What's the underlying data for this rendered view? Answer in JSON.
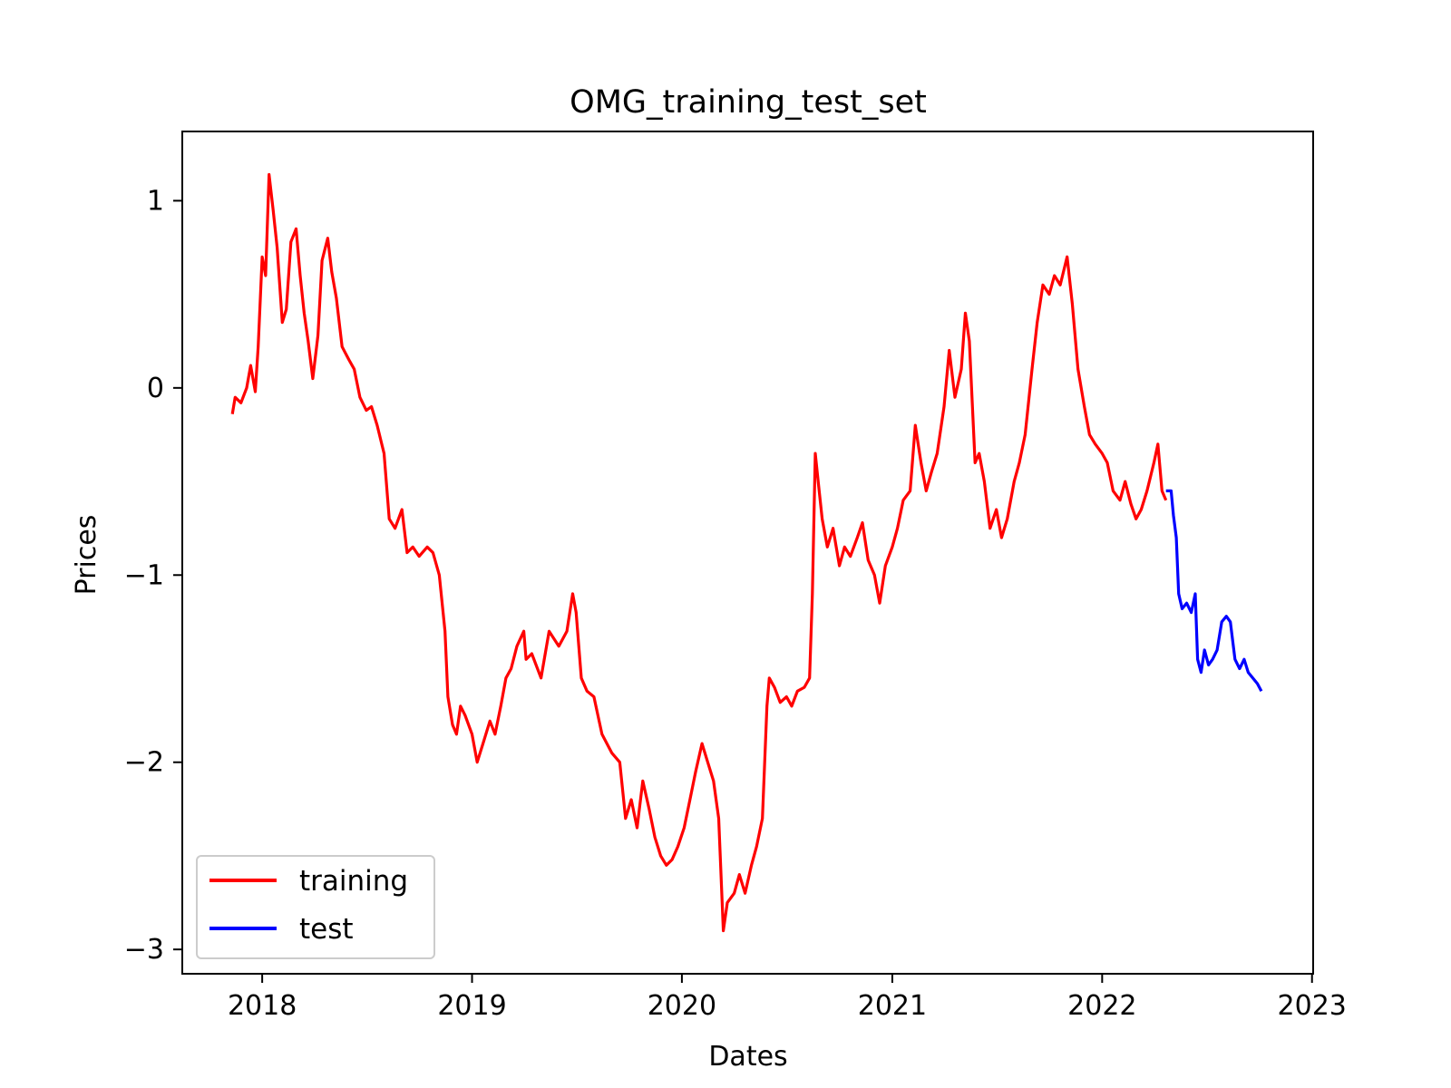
{
  "chart_data": {
    "type": "line",
    "title": "OMG_training_test_set",
    "xlabel": "Dates",
    "ylabel": "Prices",
    "xlim": [
      "2017-08-15",
      "2023-01-03"
    ],
    "ylim": [
      -3.13,
      1.37
    ],
    "x_ticks": [
      "2018",
      "2019",
      "2020",
      "2021",
      "2022",
      "2023"
    ],
    "y_ticks": [
      1,
      0,
      -1,
      -2,
      -3
    ],
    "y_tick_labels": [
      "1",
      "0",
      "−1",
      "−2",
      "−3"
    ],
    "grid": false,
    "legend_position": "lower-left",
    "series": [
      {
        "name": "training",
        "color": "#ff0000",
        "points": [
          [
            "2017-11-10",
            -0.14
          ],
          [
            "2017-11-15",
            -0.05
          ],
          [
            "2017-11-25",
            -0.08
          ],
          [
            "2017-12-05",
            0.0
          ],
          [
            "2017-12-12",
            0.12
          ],
          [
            "2017-12-20",
            -0.02
          ],
          [
            "2017-12-25",
            0.22
          ],
          [
            "2018-01-01",
            0.7
          ],
          [
            "2018-01-07",
            0.6
          ],
          [
            "2018-01-13",
            1.14
          ],
          [
            "2018-01-20",
            0.95
          ],
          [
            "2018-01-27",
            0.75
          ],
          [
            "2018-02-05",
            0.35
          ],
          [
            "2018-02-12",
            0.42
          ],
          [
            "2018-02-20",
            0.78
          ],
          [
            "2018-03-01",
            0.85
          ],
          [
            "2018-03-08",
            0.6
          ],
          [
            "2018-03-15",
            0.4
          ],
          [
            "2018-03-22",
            0.25
          ],
          [
            "2018-03-30",
            0.05
          ],
          [
            "2018-04-08",
            0.28
          ],
          [
            "2018-04-15",
            0.68
          ],
          [
            "2018-04-25",
            0.8
          ],
          [
            "2018-05-02",
            0.62
          ],
          [
            "2018-05-10",
            0.48
          ],
          [
            "2018-05-20",
            0.22
          ],
          [
            "2018-06-01",
            0.15
          ],
          [
            "2018-06-10",
            0.1
          ],
          [
            "2018-06-20",
            -0.05
          ],
          [
            "2018-07-01",
            -0.12
          ],
          [
            "2018-07-10",
            -0.1
          ],
          [
            "2018-07-20",
            -0.2
          ],
          [
            "2018-08-01",
            -0.35
          ],
          [
            "2018-08-10",
            -0.7
          ],
          [
            "2018-08-20",
            -0.75
          ],
          [
            "2018-09-01",
            -0.65
          ],
          [
            "2018-09-10",
            -0.88
          ],
          [
            "2018-09-20",
            -0.85
          ],
          [
            "2018-10-01",
            -0.9
          ],
          [
            "2018-10-15",
            -0.85
          ],
          [
            "2018-10-25",
            -0.88
          ],
          [
            "2018-11-05",
            -1.0
          ],
          [
            "2018-11-15",
            -1.3
          ],
          [
            "2018-11-20",
            -1.65
          ],
          [
            "2018-11-28",
            -1.8
          ],
          [
            "2018-12-05",
            -1.85
          ],
          [
            "2018-12-12",
            -1.7
          ],
          [
            "2018-12-20",
            -1.75
          ],
          [
            "2019-01-01",
            -1.85
          ],
          [
            "2019-01-10",
            -2.0
          ],
          [
            "2019-01-20",
            -1.9
          ],
          [
            "2019-02-01",
            -1.78
          ],
          [
            "2019-02-10",
            -1.85
          ],
          [
            "2019-02-20",
            -1.7
          ],
          [
            "2019-03-01",
            -1.55
          ],
          [
            "2019-03-10",
            -1.5
          ],
          [
            "2019-03-20",
            -1.38
          ],
          [
            "2019-04-01",
            -1.3
          ],
          [
            "2019-04-05",
            -1.45
          ],
          [
            "2019-04-15",
            -1.42
          ],
          [
            "2019-05-01",
            -1.55
          ],
          [
            "2019-05-15",
            -1.3
          ],
          [
            "2019-06-01",
            -1.38
          ],
          [
            "2019-06-15",
            -1.3
          ],
          [
            "2019-06-25",
            -1.1
          ],
          [
            "2019-07-01",
            -1.2
          ],
          [
            "2019-07-10",
            -1.55
          ],
          [
            "2019-07-20",
            -1.62
          ],
          [
            "2019-08-01",
            -1.65
          ],
          [
            "2019-08-15",
            -1.85
          ],
          [
            "2019-09-01",
            -1.95
          ],
          [
            "2019-09-15",
            -2.0
          ],
          [
            "2019-09-25",
            -2.3
          ],
          [
            "2019-10-05",
            -2.2
          ],
          [
            "2019-10-15",
            -2.35
          ],
          [
            "2019-10-25",
            -2.1
          ],
          [
            "2019-11-05",
            -2.25
          ],
          [
            "2019-11-15",
            -2.4
          ],
          [
            "2019-11-25",
            -2.5
          ],
          [
            "2019-12-05",
            -2.55
          ],
          [
            "2019-12-15",
            -2.52
          ],
          [
            "2019-12-25",
            -2.45
          ],
          [
            "2020-01-05",
            -2.35
          ],
          [
            "2020-01-15",
            -2.2
          ],
          [
            "2020-01-25",
            -2.05
          ],
          [
            "2020-02-05",
            -1.9
          ],
          [
            "2020-02-15",
            -2.0
          ],
          [
            "2020-02-25",
            -2.1
          ],
          [
            "2020-03-05",
            -2.3
          ],
          [
            "2020-03-13",
            -2.9
          ],
          [
            "2020-03-20",
            -2.75
          ],
          [
            "2020-04-01",
            -2.7
          ],
          [
            "2020-04-10",
            -2.6
          ],
          [
            "2020-04-20",
            -2.7
          ],
          [
            "2020-05-01",
            -2.55
          ],
          [
            "2020-05-10",
            -2.45
          ],
          [
            "2020-05-20",
            -2.3
          ],
          [
            "2020-05-28",
            -1.7
          ],
          [
            "2020-06-01",
            -1.55
          ],
          [
            "2020-06-10",
            -1.6
          ],
          [
            "2020-06-20",
            -1.68
          ],
          [
            "2020-07-01",
            -1.65
          ],
          [
            "2020-07-10",
            -1.7
          ],
          [
            "2020-07-20",
            -1.62
          ],
          [
            "2020-08-01",
            -1.6
          ],
          [
            "2020-08-10",
            -1.55
          ],
          [
            "2020-08-15",
            -1.1
          ],
          [
            "2020-08-20",
            -0.35
          ],
          [
            "2020-08-25",
            -0.5
          ],
          [
            "2020-09-01",
            -0.7
          ],
          [
            "2020-09-10",
            -0.85
          ],
          [
            "2020-09-20",
            -0.75
          ],
          [
            "2020-10-01",
            -0.95
          ],
          [
            "2020-10-10",
            -0.85
          ],
          [
            "2020-10-20",
            -0.9
          ],
          [
            "2020-11-01",
            -0.8
          ],
          [
            "2020-11-10",
            -0.72
          ],
          [
            "2020-11-20",
            -0.92
          ],
          [
            "2020-12-01",
            -1.0
          ],
          [
            "2020-12-10",
            -1.15
          ],
          [
            "2020-12-20",
            -0.95
          ],
          [
            "2021-01-01",
            -0.85
          ],
          [
            "2021-01-10",
            -0.75
          ],
          [
            "2021-01-20",
            -0.6
          ],
          [
            "2021-02-01",
            -0.55
          ],
          [
            "2021-02-10",
            -0.2
          ],
          [
            "2021-02-20",
            -0.4
          ],
          [
            "2021-03-01",
            -0.55
          ],
          [
            "2021-03-10",
            -0.45
          ],
          [
            "2021-03-20",
            -0.35
          ],
          [
            "2021-04-01",
            -0.1
          ],
          [
            "2021-04-10",
            0.2
          ],
          [
            "2021-04-20",
            -0.05
          ],
          [
            "2021-05-01",
            0.1
          ],
          [
            "2021-05-08",
            0.4
          ],
          [
            "2021-05-15",
            0.25
          ],
          [
            "2021-05-25",
            -0.4
          ],
          [
            "2021-06-01",
            -0.35
          ],
          [
            "2021-06-10",
            -0.5
          ],
          [
            "2021-06-20",
            -0.75
          ],
          [
            "2021-07-01",
            -0.65
          ],
          [
            "2021-07-10",
            -0.8
          ],
          [
            "2021-07-20",
            -0.7
          ],
          [
            "2021-08-01",
            -0.5
          ],
          [
            "2021-08-10",
            -0.4
          ],
          [
            "2021-08-20",
            -0.25
          ],
          [
            "2021-09-01",
            0.1
          ],
          [
            "2021-09-10",
            0.35
          ],
          [
            "2021-09-20",
            0.55
          ],
          [
            "2021-10-01",
            0.5
          ],
          [
            "2021-10-10",
            0.6
          ],
          [
            "2021-10-20",
            0.55
          ],
          [
            "2021-11-01",
            0.7
          ],
          [
            "2021-11-10",
            0.45
          ],
          [
            "2021-11-20",
            0.1
          ],
          [
            "2021-12-01",
            -0.1
          ],
          [
            "2021-12-10",
            -0.25
          ],
          [
            "2021-12-20",
            -0.3
          ],
          [
            "2022-01-01",
            -0.35
          ],
          [
            "2022-01-10",
            -0.4
          ],
          [
            "2022-01-20",
            -0.55
          ],
          [
            "2022-02-01",
            -0.6
          ],
          [
            "2022-02-10",
            -0.5
          ],
          [
            "2022-02-20",
            -0.62
          ],
          [
            "2022-03-01",
            -0.7
          ],
          [
            "2022-03-10",
            -0.65
          ],
          [
            "2022-03-20",
            -0.55
          ],
          [
            "2022-04-01",
            -0.4
          ],
          [
            "2022-04-08",
            -0.3
          ],
          [
            "2022-04-15",
            -0.55
          ],
          [
            "2022-04-22",
            -0.6
          ]
        ]
      },
      {
        "name": "test",
        "color": "#0000ff",
        "points": [
          [
            "2022-04-22",
            -0.55
          ],
          [
            "2022-05-01",
            -0.55
          ],
          [
            "2022-05-05",
            -0.68
          ],
          [
            "2022-05-10",
            -0.8
          ],
          [
            "2022-05-14",
            -1.1
          ],
          [
            "2022-05-20",
            -1.18
          ],
          [
            "2022-05-28",
            -1.15
          ],
          [
            "2022-06-05",
            -1.2
          ],
          [
            "2022-06-12",
            -1.1
          ],
          [
            "2022-06-16",
            -1.45
          ],
          [
            "2022-06-22",
            -1.52
          ],
          [
            "2022-06-28",
            -1.4
          ],
          [
            "2022-07-05",
            -1.48
          ],
          [
            "2022-07-12",
            -1.45
          ],
          [
            "2022-07-20",
            -1.4
          ],
          [
            "2022-07-28",
            -1.25
          ],
          [
            "2022-08-05",
            -1.22
          ],
          [
            "2022-08-12",
            -1.25
          ],
          [
            "2022-08-20",
            -1.45
          ],
          [
            "2022-08-28",
            -1.5
          ],
          [
            "2022-09-05",
            -1.45
          ],
          [
            "2022-09-12",
            -1.52
          ],
          [
            "2022-09-20",
            -1.55
          ],
          [
            "2022-09-28",
            -1.58
          ],
          [
            "2022-10-05",
            -1.62
          ]
        ]
      }
    ]
  }
}
